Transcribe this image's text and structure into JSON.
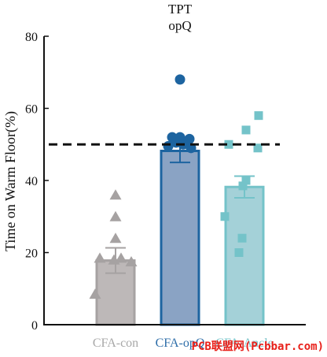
{
  "chart_data": {
    "type": "bar",
    "title": "TPT",
    "subtitle": "opQ",
    "ylabel": "Time on Warm Floor(%)",
    "ylim": [
      0,
      80
    ],
    "yticks": [
      0,
      20,
      40,
      60,
      80
    ],
    "reference_line": 50,
    "grid": false,
    "categories": [
      "CFA-con",
      "CFA-opQ",
      "CFA-Ancle"
    ],
    "series": [
      {
        "values": [
          17.8,
          48.2,
          38.2
        ],
        "sem": [
          3.5,
          3.2,
          3.0
        ],
        "bar_colors": [
          "#bdb8b8",
          "#8aa3c4",
          "#a4d1d8"
        ],
        "edge_colors": [
          "#a6a2a2",
          "#1d64a0",
          "#74c3c9"
        ],
        "label_colors": [
          "#a8a8a8",
          "#2d6da8",
          "#7cc4ca"
        ],
        "point_shapes": [
          "triangle",
          "circle",
          "square"
        ],
        "points": [
          [
            36,
            30,
            24,
            18.5,
            18.5,
            18,
            17.5,
            8.5
          ],
          [
            68,
            52,
            52,
            51.5,
            50.5,
            50,
            49.5,
            49
          ],
          [
            58,
            54,
            50,
            49,
            40,
            38.5,
            30,
            24,
            20
          ]
        ]
      }
    ]
  },
  "watermark": "PCB联盟网(Pcbbar.com)"
}
